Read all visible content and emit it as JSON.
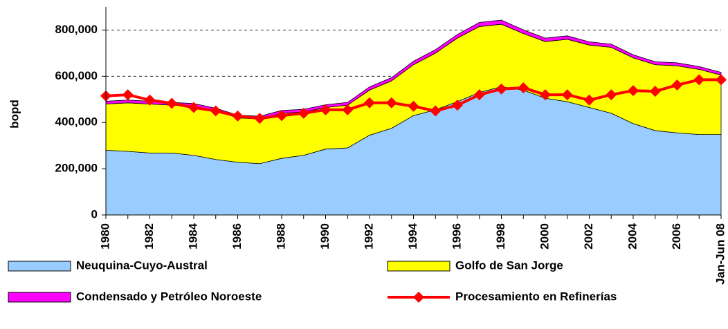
{
  "chart_data": {
    "type": "area",
    "stacked": true,
    "y_label": "bopd",
    "categories": [
      "1980",
      null,
      "1982",
      null,
      "1984",
      null,
      "1986",
      null,
      "1988",
      null,
      "1990",
      null,
      "1992",
      null,
      "1994",
      null,
      "1996",
      null,
      "1998",
      null,
      "2000",
      null,
      "2002",
      null,
      "2004",
      null,
      "2006",
      null,
      "Jan-Jun 08"
    ],
    "series": [
      {
        "name": "Neuquina-Cuyo-Austral",
        "color": "#99ccff",
        "values": [
          280000,
          275000,
          268000,
          268000,
          258000,
          240000,
          228000,
          222000,
          245000,
          258000,
          285000,
          290000,
          345000,
          375000,
          430000,
          455000,
          490000,
          530000,
          555000,
          540000,
          505000,
          490000,
          465000,
          440000,
          395000,
          365000,
          355000,
          348000,
          348000
        ]
      },
      {
        "name": "Golfo de San Jorge",
        "color": "#ffff00",
        "values": [
          200000,
          210000,
          212000,
          207000,
          212000,
          210000,
          192000,
          193000,
          195000,
          187000,
          180000,
          185000,
          195000,
          205000,
          220000,
          245000,
          275000,
          285000,
          270000,
          245000,
          245000,
          270000,
          270000,
          285000,
          285000,
          285000,
          290000,
          282000,
          257000
        ]
      },
      {
        "name": "Condensado y Petróleo Noroeste",
        "color": "#ff00ff",
        "values": [
          12000,
          12000,
          12000,
          12000,
          12000,
          12000,
          12000,
          12000,
          12000,
          12000,
          12000,
          12000,
          14000,
          14000,
          15000,
          15000,
          16000,
          18000,
          18000,
          16000,
          15000,
          15000,
          14000,
          14000,
          13000,
          13000,
          13000,
          12000,
          12000
        ]
      },
      {
        "name": "Procesamiento en Refinerías",
        "color": "#ff0000",
        "type": "line",
        "values": [
          515000,
          520000,
          497000,
          483000,
          465000,
          450000,
          428000,
          418000,
          430000,
          440000,
          455000,
          455000,
          485000,
          485000,
          470000,
          450000,
          475000,
          520000,
          545000,
          550000,
          520000,
          520000,
          497000,
          520000,
          538000,
          535000,
          562000,
          585000,
          585000
        ]
      }
    ],
    "ylim": [
      0,
      900000
    ],
    "yticks": [
      0,
      {
        "value": 200000,
        "label": "200,000"
      },
      {
        "value": 400000,
        "label": "400,000"
      },
      {
        "value": 600000,
        "label": "600,000"
      },
      {
        "value": 800000,
        "label": "800,000"
      }
    ],
    "grid": true,
    "legend": "bottom"
  }
}
